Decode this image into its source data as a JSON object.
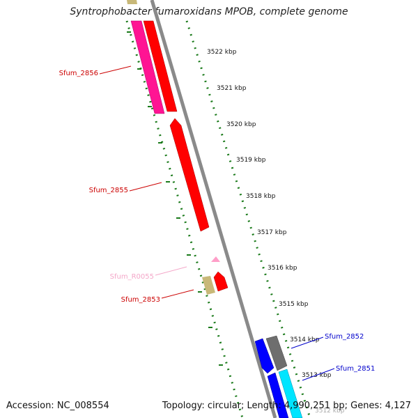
{
  "title": "Syntrophobacter fumaroxidans MPOB, complete genome",
  "footer": {
    "accession": "Accession: NC_008554",
    "topology": "Topology: circular; Length: 4,990,251 bp; Genes: 4,127"
  },
  "scale_labels": [
    "3522 kbp",
    "3521 kbp",
    "3520 kbp",
    "3519 kbp",
    "3518 kbp",
    "3517 kbp",
    "3516 kbp",
    "3515 kbp",
    "3514 kbp",
    "3513 kbp",
    "3512 kbp"
  ],
  "gene_labels": [
    {
      "id": "sfum_2856",
      "text": "Sfum_2856",
      "color": "#cc0000"
    },
    {
      "id": "sfum_2855",
      "text": "Sfum_2855",
      "color": "#cc0000"
    },
    {
      "id": "sfum_r0055",
      "text": "Sfum_R0055",
      "color": "#f4a6c8"
    },
    {
      "id": "sfum_2853",
      "text": "Sfum_2853",
      "color": "#cc0000"
    },
    {
      "id": "sfum_2852",
      "text": "Sfum_2852",
      "color": "#0000cc"
    },
    {
      "id": "sfum_2851",
      "text": "Sfum_2851",
      "color": "#0000cc"
    }
  ],
  "colors": {
    "cds_red": "#ff0000",
    "cds_magenta": "#ff1493",
    "cds_blue": "#0000ff",
    "cds_cyan": "#00e5ff",
    "cds_gray": "#6e6e6e",
    "cds_khaki": "#c8b878",
    "rna_pink": "#ff9ec8",
    "tick_green": "#1a7a1a",
    "backbone": "#8a8a8a"
  }
}
